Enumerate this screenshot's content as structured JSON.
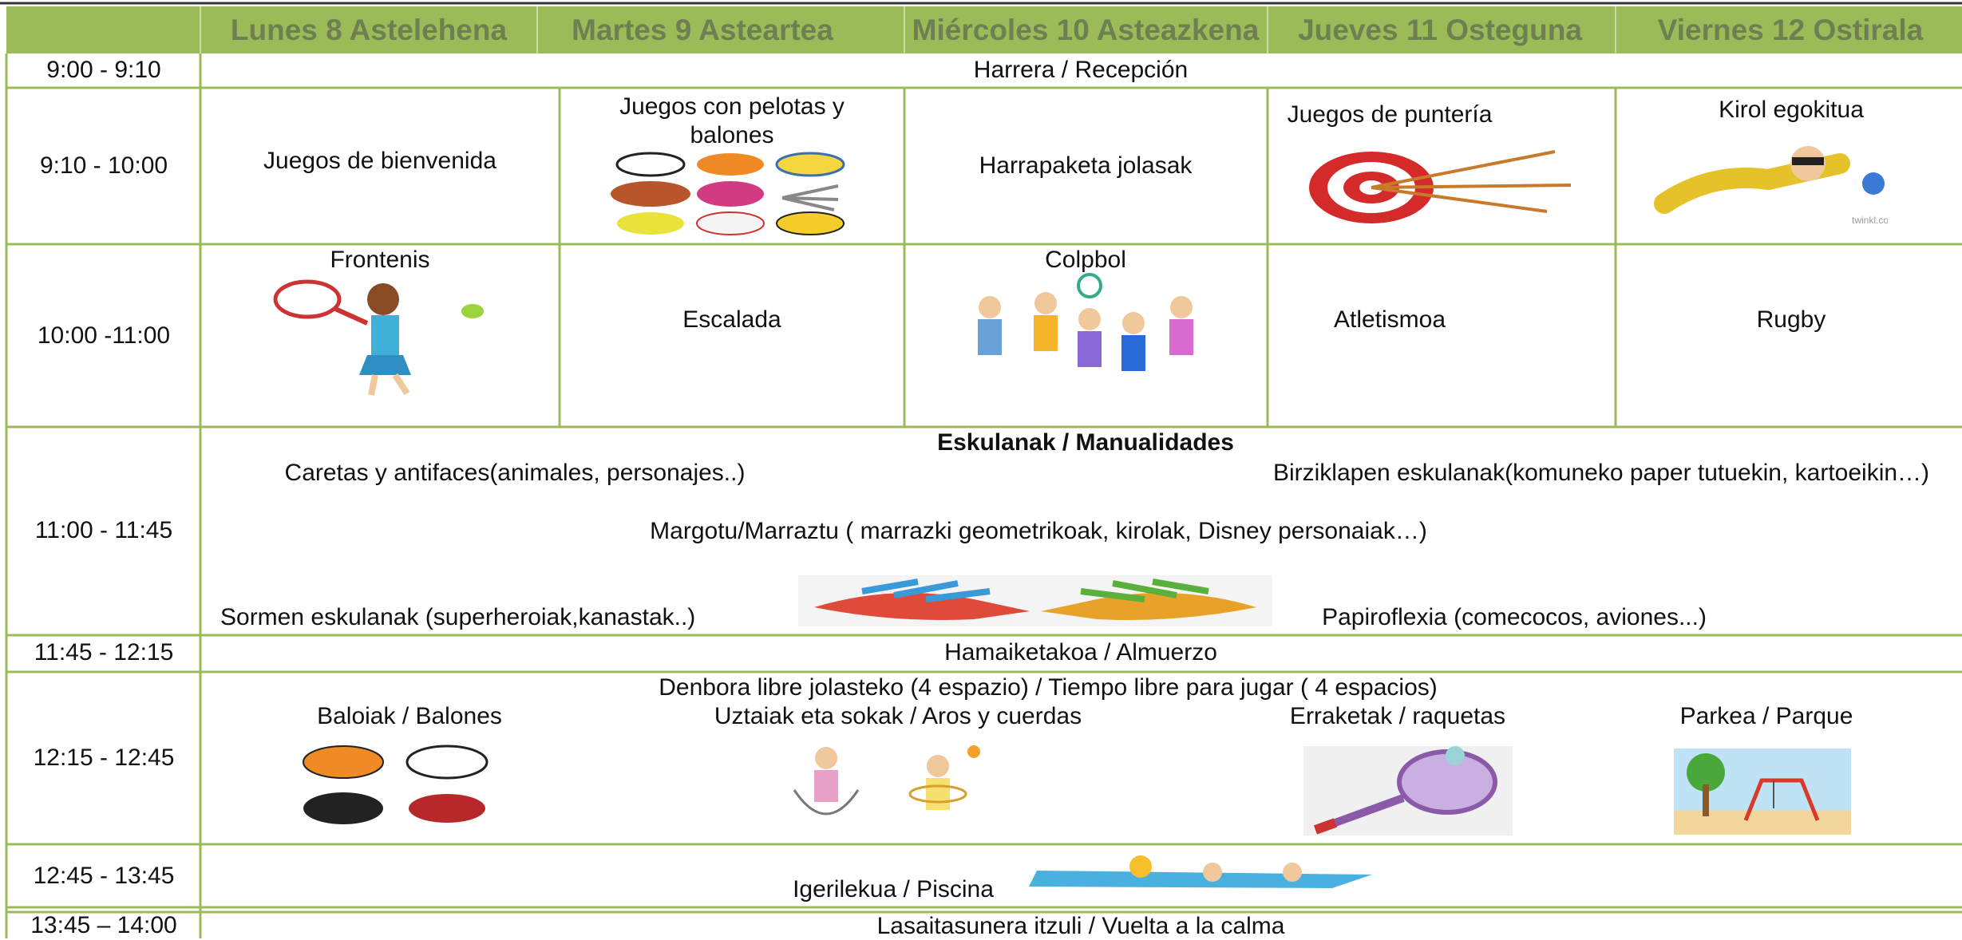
{
  "days": [
    "Lunes 8 Astelehena",
    "Martes 9 Asteartea",
    "Miércoles 10 Asteazkena",
    "Jueves 11 Osteguna",
    "Viernes 12 Ostirala"
  ],
  "rows": [
    {
      "time": "9:00 - 9:10",
      "text": "Harrera / Recepción"
    },
    {
      "time": "9:10 - 10:00",
      "cells": [
        "Juegos de bienvenida",
        "Juegos con pelotas y balones",
        "Harrapaketa jolasak",
        "Juegos de puntería",
        "Kirol egokitua"
      ]
    },
    {
      "time": "10:00 -11:00",
      "cells": [
        "Frontenis",
        "Escalada",
        "Colpbol",
        "Atletismoa",
        "Rugby"
      ]
    },
    {
      "time": "11:00 - 11:45",
      "title": "Eskulanak / Manualidades",
      "items": [
        "Caretas y antifaces(animales, personajes..)",
        "Birziklapen eskulanak(komuneko paper tutuekin, kartoeikin…)",
        "Margotu/Marraztu ( marrazki geometrikoak, kirolak, Disney personaiak…)",
        "Sormen eskulanak (superheroiak,kanastak..)",
        "Papiroflexia (comecocos, aviones...)"
      ]
    },
    {
      "time": "11:45 - 12:15",
      "text": "Hamaiketakoa / Almuerzo"
    },
    {
      "time": "12:15 - 12:45",
      "title": "Denbora libre jolasteko (4 espazio) / Tiempo libre para jugar ( 4 espacios)",
      "items": [
        "Baloiak / Balones",
        "Uztaiak eta sokak  / Aros y cuerdas",
        "Erraketak / raquetas",
        "Parkea / Parque"
      ]
    },
    {
      "time": "12:45 - 13:45",
      "text": "Igerilekua / Piscina"
    },
    {
      "time": "13:45 – 14:00",
      "text": "Lasaitasunera itzuli / Vuelta a la calma"
    }
  ]
}
